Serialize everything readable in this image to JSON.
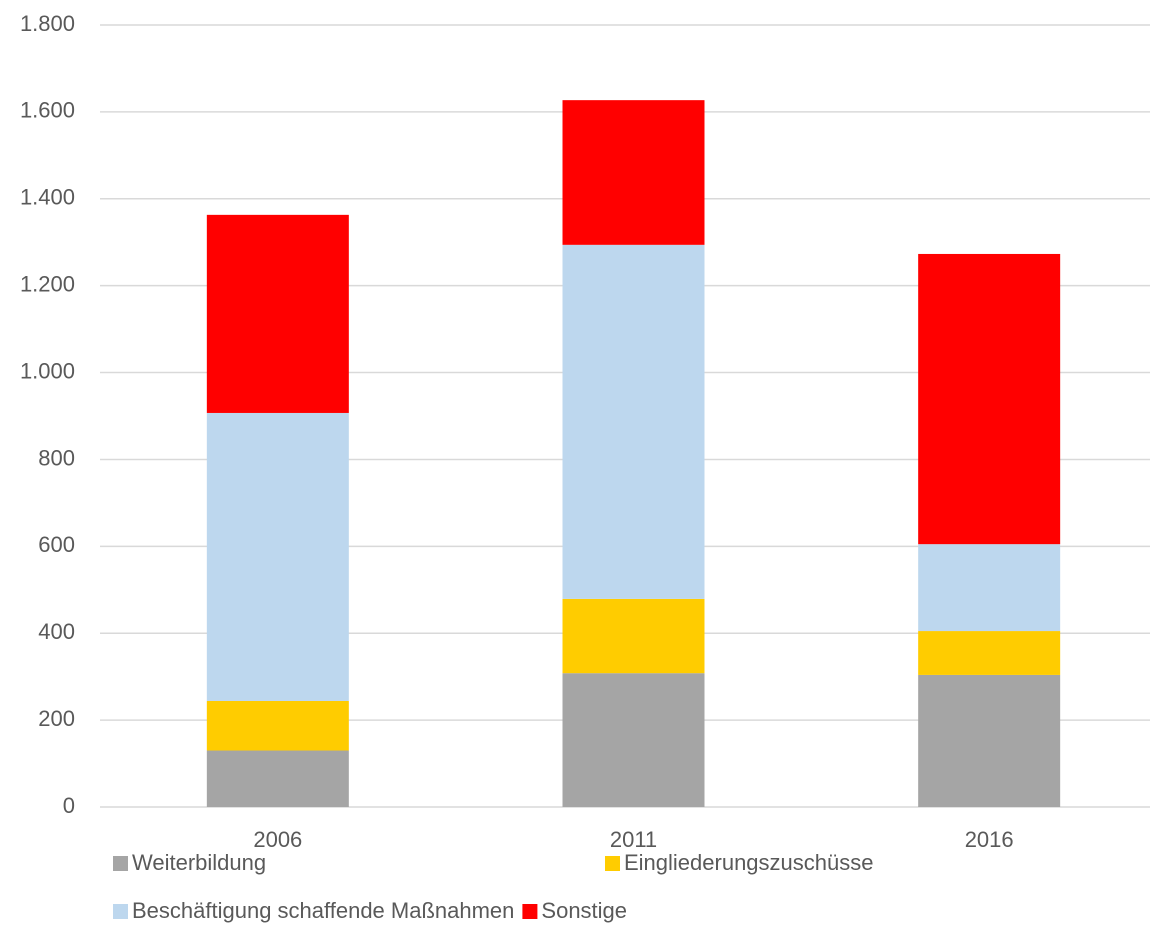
{
  "chart_data": {
    "type": "stacked_bar",
    "categories": [
      "2006",
      "2011",
      "2016"
    ],
    "series": [
      {
        "name": "Weiterbildung",
        "color": "#a5a5a5",
        "values": [
          130,
          308,
          304
        ]
      },
      {
        "name": "Eingliederungszuschüsse",
        "color": "#ffcc00",
        "values": [
          114,
          171,
          101
        ]
      },
      {
        "name": "Beschäftigung schaffende Maßnahmen",
        "color": "#bdd7ee",
        "values": [
          663,
          815,
          200
        ]
      },
      {
        "name": "Sonstige",
        "color": "#ff0000",
        "values": [
          456,
          333,
          668
        ]
      }
    ],
    "ylim": [
      0,
      1800
    ],
    "yticks": [
      0,
      200,
      400,
      600,
      800,
      {
        "value": 1000,
        "label": "1.000"
      },
      {
        "value": 1200,
        "label": "1.200"
      },
      {
        "value": 1400,
        "label": "1.400"
      },
      {
        "value": 1600,
        "label": "1.600"
      },
      {
        "value": 1800,
        "label": "1.800"
      }
    ],
    "grid": true,
    "legend": "bottom"
  }
}
